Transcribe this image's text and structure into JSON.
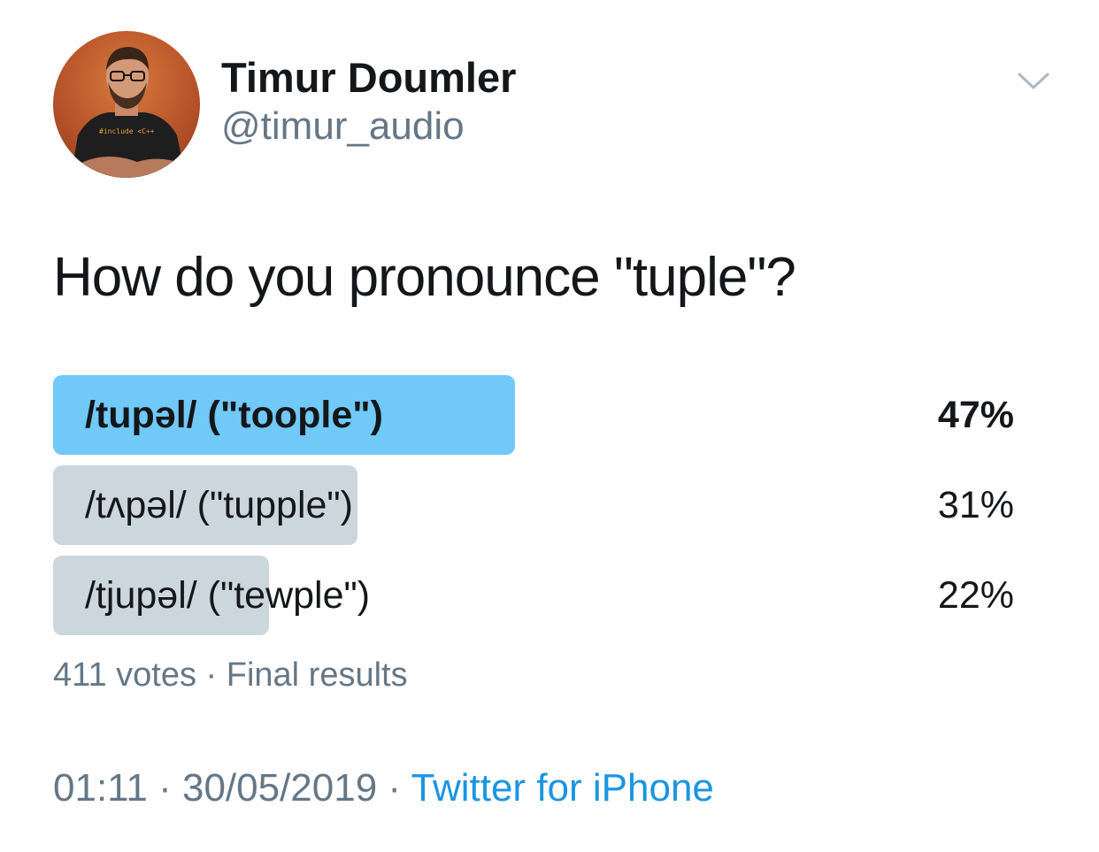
{
  "author": {
    "name": "Timur Doumler",
    "handle": "@timur_audio",
    "avatar_shirt_text": "#include <C++"
  },
  "menu_icon": "chevron-down-icon",
  "tweet": {
    "text": "How do you pronounce \"tuple\"?"
  },
  "poll": {
    "options": [
      {
        "label": "/tupəl/ (\"toople\")",
        "percent_text": "47%",
        "percent": 47,
        "winner": true
      },
      {
        "label": "/tʌpəl/ (\"tupple\")",
        "percent_text": "31%",
        "percent": 31,
        "winner": false
      },
      {
        "label": "/tjupəl/ (\"tewple\")",
        "percent_text": "22%",
        "percent": 22,
        "winner": false
      }
    ],
    "votes": "411 votes",
    "separator": "·",
    "status": "Final results"
  },
  "meta": {
    "time": "01:11",
    "date": "30/05/2019",
    "separator": "·",
    "source": "Twitter for iPhone"
  },
  "colors": {
    "winner_bar": "#71c9f8",
    "other_bar": "#ccd6dd",
    "secondary_text": "#657786",
    "link": "#1b95e0"
  }
}
